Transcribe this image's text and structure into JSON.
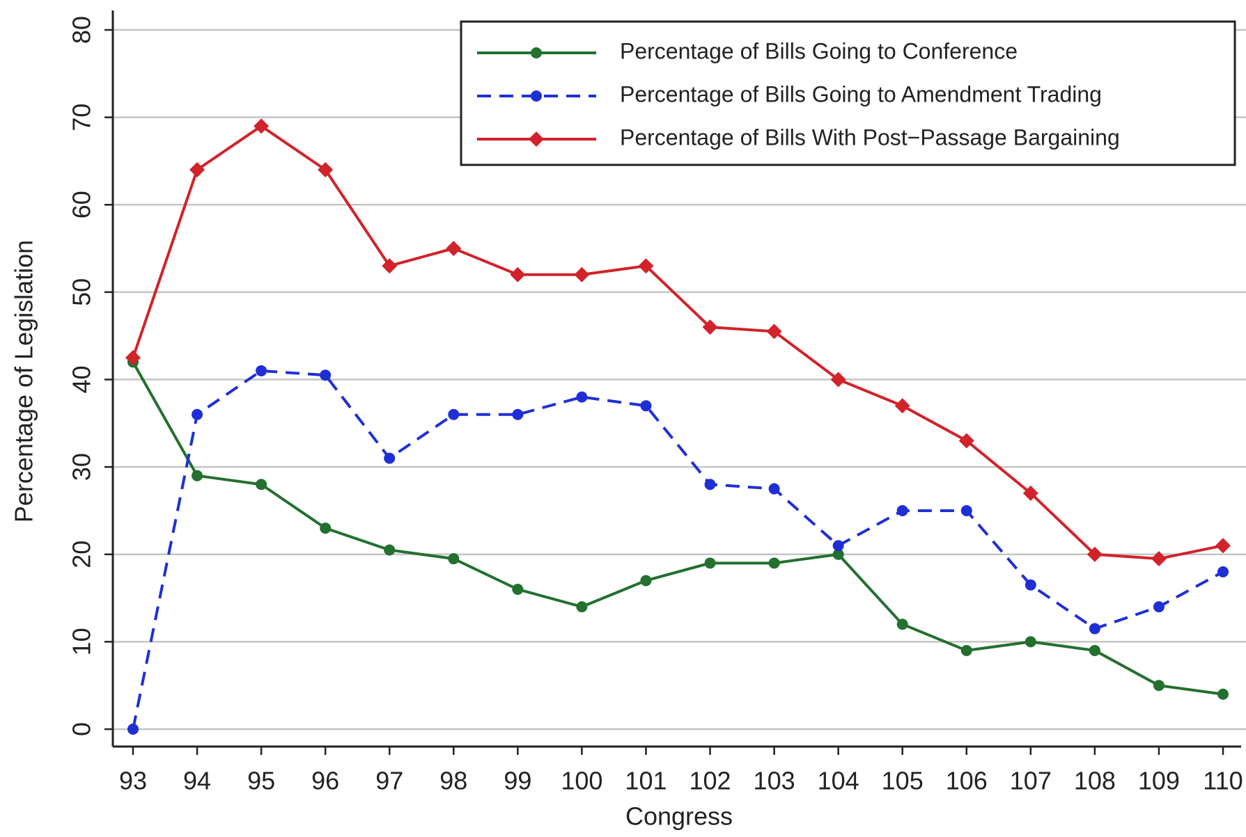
{
  "chart_data": {
    "type": "line",
    "x_label": "Congress",
    "y_label": "Percentage of Legislation",
    "x": [
      93,
      94,
      95,
      96,
      97,
      98,
      99,
      100,
      101,
      102,
      103,
      104,
      105,
      106,
      107,
      108,
      109,
      110
    ],
    "xlim": [
      93,
      110
    ],
    "xticks": [
      93,
      94,
      95,
      96,
      97,
      98,
      99,
      100,
      101,
      102,
      103,
      104,
      105,
      106,
      107,
      108,
      109,
      110
    ],
    "ylim": [
      0,
      80
    ],
    "yticks": [
      0,
      10,
      20,
      30,
      40,
      50,
      60,
      70,
      80
    ],
    "grid": true,
    "legend": "upper right",
    "series": [
      {
        "name": "Percentage of Bills Going to Conference",
        "color": "#23702f",
        "marker": "circle",
        "line_style": "solid",
        "values": [
          42,
          29,
          28,
          23,
          20.5,
          19.5,
          16,
          14,
          17,
          19,
          19,
          20,
          12,
          9,
          10,
          9,
          5,
          4
        ]
      },
      {
        "name": "Percentage of Bills Going to Amendment Trading",
        "color": "#1f2fd6",
        "marker": "circle",
        "line_style": "dashed",
        "values": [
          0,
          36,
          41,
          40.5,
          31,
          36,
          36,
          38,
          37,
          28,
          27.5,
          21,
          25,
          25,
          16.5,
          11.5,
          14,
          18
        ]
      },
      {
        "name": "Percentage of Bills With Post−Passage Bargaining",
        "color": "#d2222a",
        "marker": "diamond",
        "line_style": "solid",
        "values": [
          42.5,
          64,
          69,
          64,
          53,
          55,
          52,
          52,
          53,
          46,
          45.5,
          40,
          37,
          33,
          27,
          20,
          19.5,
          21
        ]
      }
    ]
  }
}
